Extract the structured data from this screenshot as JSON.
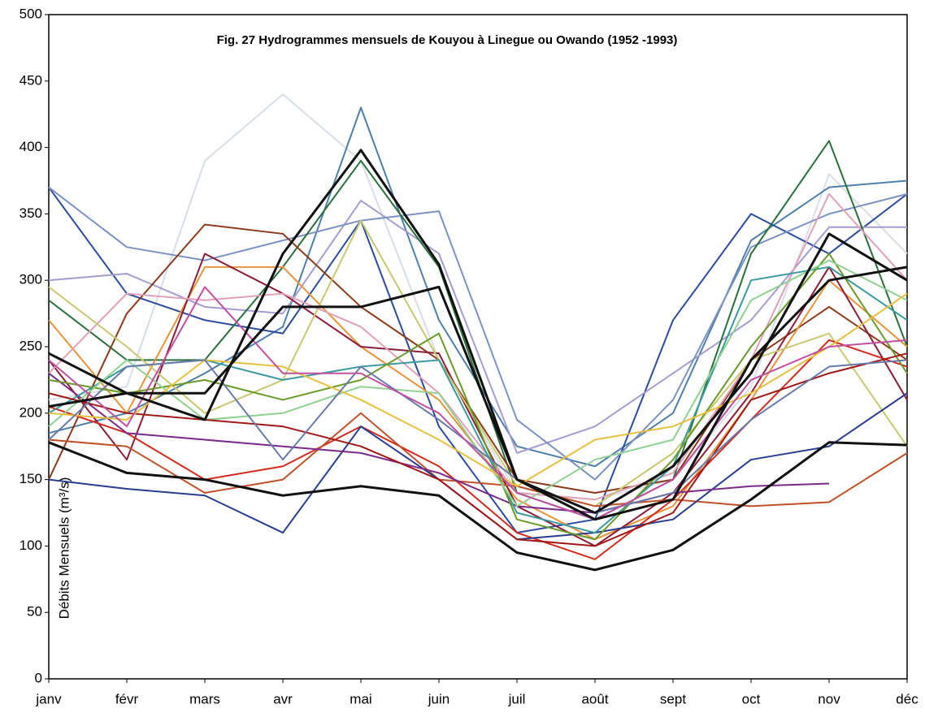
{
  "chart_data": {
    "type": "line",
    "title": "Fig. 27 Hydrogrammes mensuels de Kouyou à Linegue ou Owando (1952 -1993)",
    "ylabel": "Débits Mensuels (m³/s)",
    "categories": [
      "janv",
      "févr",
      "mars",
      "avr",
      "mai",
      "juin",
      "juil",
      "août",
      "sept",
      "oct",
      "nov",
      "déc"
    ],
    "ylim": [
      0,
      500
    ],
    "yticks": [
      0,
      50,
      100,
      150,
      200,
      250,
      300,
      350,
      400,
      450,
      500
    ],
    "series": [
      {
        "color": "#d8dde6",
        "values": [
          210,
          220,
          390,
          440,
          390,
          240,
          140,
          135,
          150,
          220,
          380,
          320
        ]
      },
      {
        "color": "#4f7fa8",
        "values": [
          185,
          200,
          230,
          265,
          430,
          270,
          175,
          160,
          200,
          330,
          370,
          375
        ]
      },
      {
        "color": "#2c4aa0",
        "values": [
          370,
          290,
          270,
          260,
          345,
          190,
          110,
          120,
          270,
          350,
          320,
          365
        ]
      },
      {
        "color": "#a79bd0",
        "values": [
          300,
          305,
          280,
          275,
          360,
          320,
          170,
          190,
          230,
          270,
          340,
          340
        ]
      },
      {
        "color": "#7d92c2",
        "values": [
          370,
          325,
          315,
          330,
          345,
          352,
          195,
          150,
          210,
          325,
          350,
          365
        ]
      },
      {
        "color": "#2a6e3c",
        "values": [
          285,
          240,
          240,
          310,
          390,
          310,
          140,
          120,
          150,
          320,
          405,
          250
        ]
      },
      {
        "color": "#8b3a1c",
        "values": [
          150,
          275,
          342,
          335,
          280,
          240,
          150,
          140,
          150,
          240,
          280,
          240
        ]
      },
      {
        "color": "#e8923a",
        "values": [
          270,
          200,
          310,
          310,
          250,
          210,
          135,
          105,
          130,
          210,
          300,
          250
        ]
      },
      {
        "color": "#8a1e3a",
        "values": [
          240,
          165,
          320,
          290,
          250,
          245,
          130,
          100,
          140,
          215,
          310,
          210
        ]
      },
      {
        "color": "#e0a0b8",
        "values": [
          230,
          290,
          285,
          290,
          265,
          215,
          140,
          135,
          155,
          240,
          365,
          300
        ]
      },
      {
        "color": "#c8c870",
        "values": [
          295,
          250,
          200,
          225,
          345,
          240,
          145,
          130,
          170,
          240,
          260,
          175
        ]
      },
      {
        "color": "#d42a1e",
        "values": [
          205,
          185,
          150,
          160,
          190,
          160,
          110,
          90,
          135,
          195,
          255,
          235
        ]
      },
      {
        "color": "#c0502a",
        "values": [
          180,
          175,
          140,
          150,
          200,
          150,
          145,
          130,
          135,
          130,
          133,
          170
        ]
      },
      {
        "color": "#283c90",
        "values": [
          150,
          143,
          138,
          110,
          190,
          150,
          105,
          110,
          120,
          165,
          175,
          215
        ]
      },
      {
        "color": "#7a2a8a",
        "values": [
          230,
          185,
          180,
          175,
          170,
          155,
          130,
          125,
          140,
          145,
          147,
          null
        ]
      },
      {
        "color": "#3a9aa0",
        "values": [
          200,
          235,
          240,
          225,
          235,
          240,
          125,
          110,
          160,
          300,
          310,
          270
        ]
      },
      {
        "color": "#6a9a2a",
        "values": [
          225,
          215,
          225,
          210,
          225,
          260,
          120,
          105,
          165,
          250,
          320,
          230
        ]
      },
      {
        "color": "#90d090",
        "values": [
          190,
          240,
          195,
          200,
          220,
          215,
          130,
          165,
          180,
          285,
          315,
          285
        ]
      },
      {
        "color": "#a01818",
        "values": [
          215,
          200,
          195,
          190,
          175,
          150,
          105,
          100,
          125,
          210,
          230,
          245
        ]
      },
      {
        "color": "#e8c040",
        "values": [
          200,
          195,
          240,
          235,
          210,
          180,
          145,
          180,
          190,
          215,
          250,
          290
        ]
      },
      {
        "color": "#6a7aa8",
        "values": [
          180,
          235,
          240,
          165,
          235,
          195,
          150,
          125,
          140,
          195,
          235,
          240
        ]
      },
      {
        "color": "#c050a0",
        "values": [
          240,
          190,
          295,
          230,
          230,
          200,
          140,
          120,
          150,
          225,
          250,
          255
        ]
      },
      {
        "color": "#111111",
        "values": [
          205,
          215,
          215,
          280,
          280,
          295,
          150,
          120,
          135,
          240,
          300,
          310
        ]
      },
      {
        "color": "#111111",
        "values": [
          245,
          215,
          195,
          320,
          398,
          312,
          150,
          125,
          160,
          230,
          335,
          300
        ]
      },
      {
        "color": "#111111",
        "values": [
          178,
          155,
          150,
          138,
          145,
          138,
          95,
          82,
          97,
          135,
          178,
          176
        ]
      }
    ]
  }
}
